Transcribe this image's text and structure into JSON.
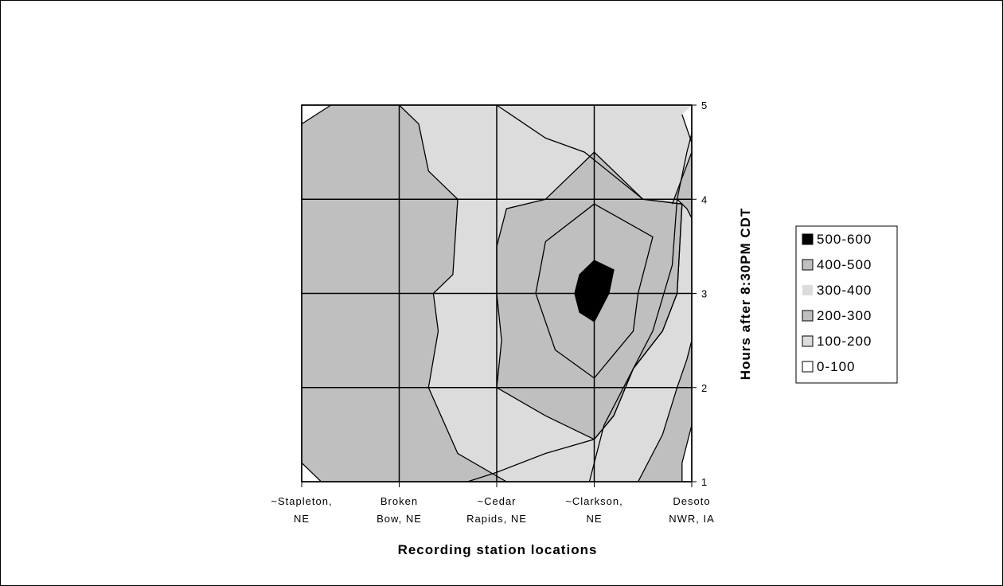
{
  "chart_data": {
    "type": "contour",
    "title": "",
    "xlabel": "Recording station locations",
    "ylabel": "Hours after 8:30PM CDT",
    "x_categories": [
      [
        "~Stapleton,",
        "NE"
      ],
      [
        "Broken",
        "Bow, NE"
      ],
      [
        "~Cedar",
        "Rapids, NE"
      ],
      [
        "~Clarkson,",
        "NE"
      ],
      [
        "Desoto",
        "NWR, IA"
      ]
    ],
    "y_ticks": [
      "1",
      "2",
      "3",
      "4",
      "5"
    ],
    "ylim": [
      1,
      5
    ],
    "grid": true,
    "legend_position": "right",
    "legend": [
      {
        "label": "500-600",
        "color": "#000000"
      },
      {
        "label": "400-500",
        "color": "#bfbfbf"
      },
      {
        "label": "300-400",
        "color": "#dcdcdc"
      },
      {
        "label": "200-300",
        "color": "#bfbfbf"
      },
      {
        "label": "100-200",
        "color": "#dcdcdc"
      },
      {
        "label": "0-100",
        "color": "#ffffff"
      }
    ],
    "contour_levels": [
      100,
      200,
      300,
      400,
      500
    ],
    "contours": [
      {
        "level": 100,
        "paths": [
          [
            [
              1.3,
              5.0
            ],
            [
              1.0,
              4.8
            ],
            [
              0.9,
              4.0
            ],
            [
              0.8,
              3.5
            ],
            [
              0.55,
              3.0
            ],
            [
              0.55,
              2.2
            ],
            [
              0.7,
              1.5
            ],
            [
              1.2,
              1.0
            ]
          ],
          [
            [
              4.9,
              1.0
            ],
            [
              4.9,
              1.2
            ],
            [
              5.0,
              1.6
            ]
          ],
          [
            [
              4.9,
              4.9
            ],
            [
              5.0,
              4.6
            ]
          ]
        ]
      },
      {
        "level": 200,
        "paths": [
          [
            [
              2.0,
              5.0
            ],
            [
              2.2,
              4.8
            ],
            [
              2.3,
              4.3
            ],
            [
              2.6,
              4.0
            ],
            [
              2.55,
              3.2
            ],
            [
              2.35,
              3.0
            ],
            [
              2.4,
              2.6
            ],
            [
              2.3,
              2.0
            ],
            [
              2.6,
              1.3
            ],
            [
              3.1,
              1.0
            ]
          ],
          [
            [
              4.45,
              1.0
            ],
            [
              4.7,
              1.5
            ],
            [
              4.85,
              2.0
            ],
            [
              4.95,
              2.3
            ],
            [
              5.0,
              2.5
            ]
          ],
          [
            [
              4.85,
              4.0
            ],
            [
              4.95,
              3.9
            ],
            [
              5.0,
              3.8
            ]
          ],
          [
            [
              4.8,
              3.95
            ],
            [
              5.0,
              4.5
            ]
          ]
        ]
      },
      {
        "level": 300,
        "paths": [
          [
            [
              3.0,
              5.0
            ],
            [
              3.5,
              4.65
            ],
            [
              3.9,
              4.5
            ],
            [
              4.5,
              4.0
            ],
            [
              4.9,
              3.95
            ],
            [
              4.85,
              3.0
            ],
            [
              4.7,
              2.6
            ],
            [
              4.4,
              2.2
            ],
            [
              4.2,
              1.7
            ],
            [
              4.0,
              1.45
            ],
            [
              3.5,
              1.3
            ],
            [
              3.0,
              1.1
            ],
            [
              2.7,
              1.0
            ]
          ],
          [
            [
              3.95,
              1.0
            ],
            [
              4.1,
              1.6
            ],
            [
              4.35,
              2.1
            ],
            [
              4.6,
              2.6
            ],
            [
              4.8,
              3.3
            ],
            [
              4.85,
              4.0
            ],
            [
              4.95,
              4.5
            ],
            [
              5.0,
              4.7
            ]
          ]
        ]
      },
      {
        "level": 400,
        "paths": [
          [
            [
              4.0,
              3.95
            ],
            [
              4.6,
              3.6
            ],
            [
              4.45,
              3.0
            ],
            [
              4.4,
              2.6
            ],
            [
              4.0,
              2.1
            ],
            [
              3.6,
              2.4
            ],
            [
              3.4,
              3.0
            ],
            [
              3.5,
              3.55
            ],
            [
              4.0,
              3.95
            ]
          ],
          [
            [
              4.0,
              4.5
            ],
            [
              3.5,
              4.0
            ],
            [
              3.1,
              3.9
            ],
            [
              3.0,
              3.5
            ],
            [
              3.0,
              3.0
            ],
            [
              3.05,
              2.5
            ],
            [
              3.0,
              2.0
            ],
            [
              3.5,
              1.7
            ],
            [
              4.0,
              1.45
            ],
            [
              4.2,
              1.7
            ],
            [
              4.4,
              2.2
            ],
            [
              4.7,
              2.6
            ],
            [
              4.85,
              3.0
            ],
            [
              4.9,
              3.95
            ],
            [
              4.5,
              4.0
            ],
            [
              4.0,
              4.5
            ]
          ]
        ]
      },
      {
        "level": 500,
        "paths": [
          [
            [
              4.0,
              3.35
            ],
            [
              4.2,
              3.25
            ],
            [
              4.15,
              3.0
            ],
            [
              4.0,
              2.7
            ],
            [
              3.85,
              2.8
            ],
            [
              3.8,
              3.0
            ],
            [
              3.85,
              3.2
            ],
            [
              4.0,
              3.35
            ]
          ]
        ]
      }
    ],
    "regions": [
      {
        "band": "200-300",
        "fill": "#bfbfbf"
      },
      {
        "band": "300-400",
        "fill": "#dcdcdc"
      },
      {
        "band": "400-500",
        "fill": "#bfbfbf"
      },
      {
        "band": "500-600",
        "fill": "#000000"
      }
    ]
  }
}
